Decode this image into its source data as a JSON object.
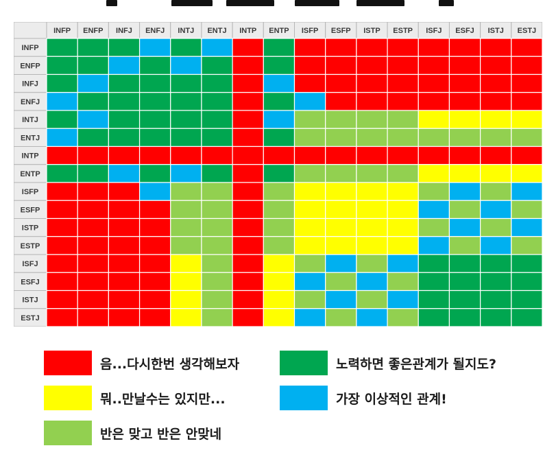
{
  "chart_data": {
    "type": "heatmap",
    "row_labels": [
      "INFP",
      "ENFP",
      "INFJ",
      "ENFJ",
      "INTJ",
      "ENTJ",
      "INTP",
      "ENTP",
      "ISFP",
      "ESFP",
      "ISTP",
      "ESTP",
      "ISFJ",
      "ESFJ",
      "ISTJ",
      "ESTJ"
    ],
    "col_labels": [
      "INFP",
      "ENFP",
      "INFJ",
      "ENFJ",
      "INTJ",
      "ENTJ",
      "INTP",
      "ENTP",
      "ISFP",
      "ESFP",
      "ISTP",
      "ESTP",
      "ISFJ",
      "ESFJ",
      "ISTJ",
      "ESTJ"
    ],
    "categories": {
      "R": {
        "label": "음...다시한번 생각해보자",
        "color": "#ff0000"
      },
      "G": {
        "label": "노력하면 좋은관계가 될지도?",
        "color": "#00a650"
      },
      "Y": {
        "label": "뭐..만날수는 있지만...",
        "color": "#ffff00"
      },
      "B": {
        "label": "가장 이상적인 관계!",
        "color": "#00b0f0"
      },
      "L": {
        "label": "반은 맞고 반은 안맞네",
        "color": "#92d050"
      }
    },
    "cells": [
      [
        "G",
        "G",
        "G",
        "B",
        "G",
        "B",
        "R",
        "G",
        "R",
        "R",
        "R",
        "R",
        "R",
        "R",
        "R",
        "R"
      ],
      [
        "G",
        "G",
        "B",
        "G",
        "B",
        "G",
        "R",
        "G",
        "R",
        "R",
        "R",
        "R",
        "R",
        "R",
        "R",
        "R"
      ],
      [
        "G",
        "B",
        "G",
        "G",
        "G",
        "G",
        "R",
        "B",
        "R",
        "R",
        "R",
        "R",
        "R",
        "R",
        "R",
        "R"
      ],
      [
        "B",
        "G",
        "G",
        "G",
        "G",
        "G",
        "R",
        "G",
        "B",
        "R",
        "R",
        "R",
        "R",
        "R",
        "R",
        "R"
      ],
      [
        "G",
        "B",
        "G",
        "G",
        "G",
        "G",
        "R",
        "B",
        "L",
        "L",
        "L",
        "L",
        "Y",
        "Y",
        "Y",
        "Y"
      ],
      [
        "B",
        "G",
        "G",
        "G",
        "G",
        "G",
        "R",
        "G",
        "L",
        "L",
        "L",
        "L",
        "L",
        "L",
        "L",
        "L"
      ],
      [
        "R",
        "R",
        "R",
        "R",
        "R",
        "R",
        "R",
        "R",
        "R",
        "R",
        "R",
        "R",
        "R",
        "R",
        "R",
        "R"
      ],
      [
        "G",
        "G",
        "B",
        "G",
        "B",
        "G",
        "R",
        "G",
        "L",
        "L",
        "L",
        "L",
        "Y",
        "Y",
        "Y",
        "Y"
      ],
      [
        "R",
        "R",
        "R",
        "B",
        "L",
        "L",
        "R",
        "L",
        "Y",
        "Y",
        "Y",
        "Y",
        "L",
        "B",
        "L",
        "B"
      ],
      [
        "R",
        "R",
        "R",
        "R",
        "L",
        "L",
        "R",
        "L",
        "Y",
        "Y",
        "Y",
        "Y",
        "B",
        "L",
        "B",
        "L"
      ],
      [
        "R",
        "R",
        "R",
        "R",
        "L",
        "L",
        "R",
        "L",
        "Y",
        "Y",
        "Y",
        "Y",
        "L",
        "B",
        "L",
        "B"
      ],
      [
        "R",
        "R",
        "R",
        "R",
        "L",
        "L",
        "R",
        "L",
        "Y",
        "Y",
        "Y",
        "Y",
        "B",
        "L",
        "B",
        "L"
      ],
      [
        "R",
        "R",
        "R",
        "R",
        "Y",
        "L",
        "R",
        "Y",
        "L",
        "B",
        "L",
        "B",
        "G",
        "G",
        "G",
        "G"
      ],
      [
        "R",
        "R",
        "R",
        "R",
        "Y",
        "L",
        "R",
        "Y",
        "B",
        "L",
        "B",
        "L",
        "G",
        "G",
        "G",
        "G"
      ],
      [
        "R",
        "R",
        "R",
        "R",
        "Y",
        "L",
        "R",
        "Y",
        "L",
        "B",
        "L",
        "B",
        "G",
        "G",
        "G",
        "G"
      ],
      [
        "R",
        "R",
        "R",
        "R",
        "Y",
        "L",
        "R",
        "Y",
        "B",
        "L",
        "B",
        "L",
        "G",
        "G",
        "G",
        "G"
      ]
    ]
  },
  "legend": {
    "items": [
      {
        "key": "R",
        "label": "음...다시한번 생각해보자"
      },
      {
        "key": "G",
        "label": "노력하면 좋은관계가 될지도?"
      },
      {
        "key": "Y",
        "label": "뭐..만날수는 있지만..."
      },
      {
        "key": "B",
        "label": "가장 이상적인 관계!"
      },
      {
        "key": "L",
        "label": "반은 맞고 반은 안맞네"
      }
    ]
  }
}
